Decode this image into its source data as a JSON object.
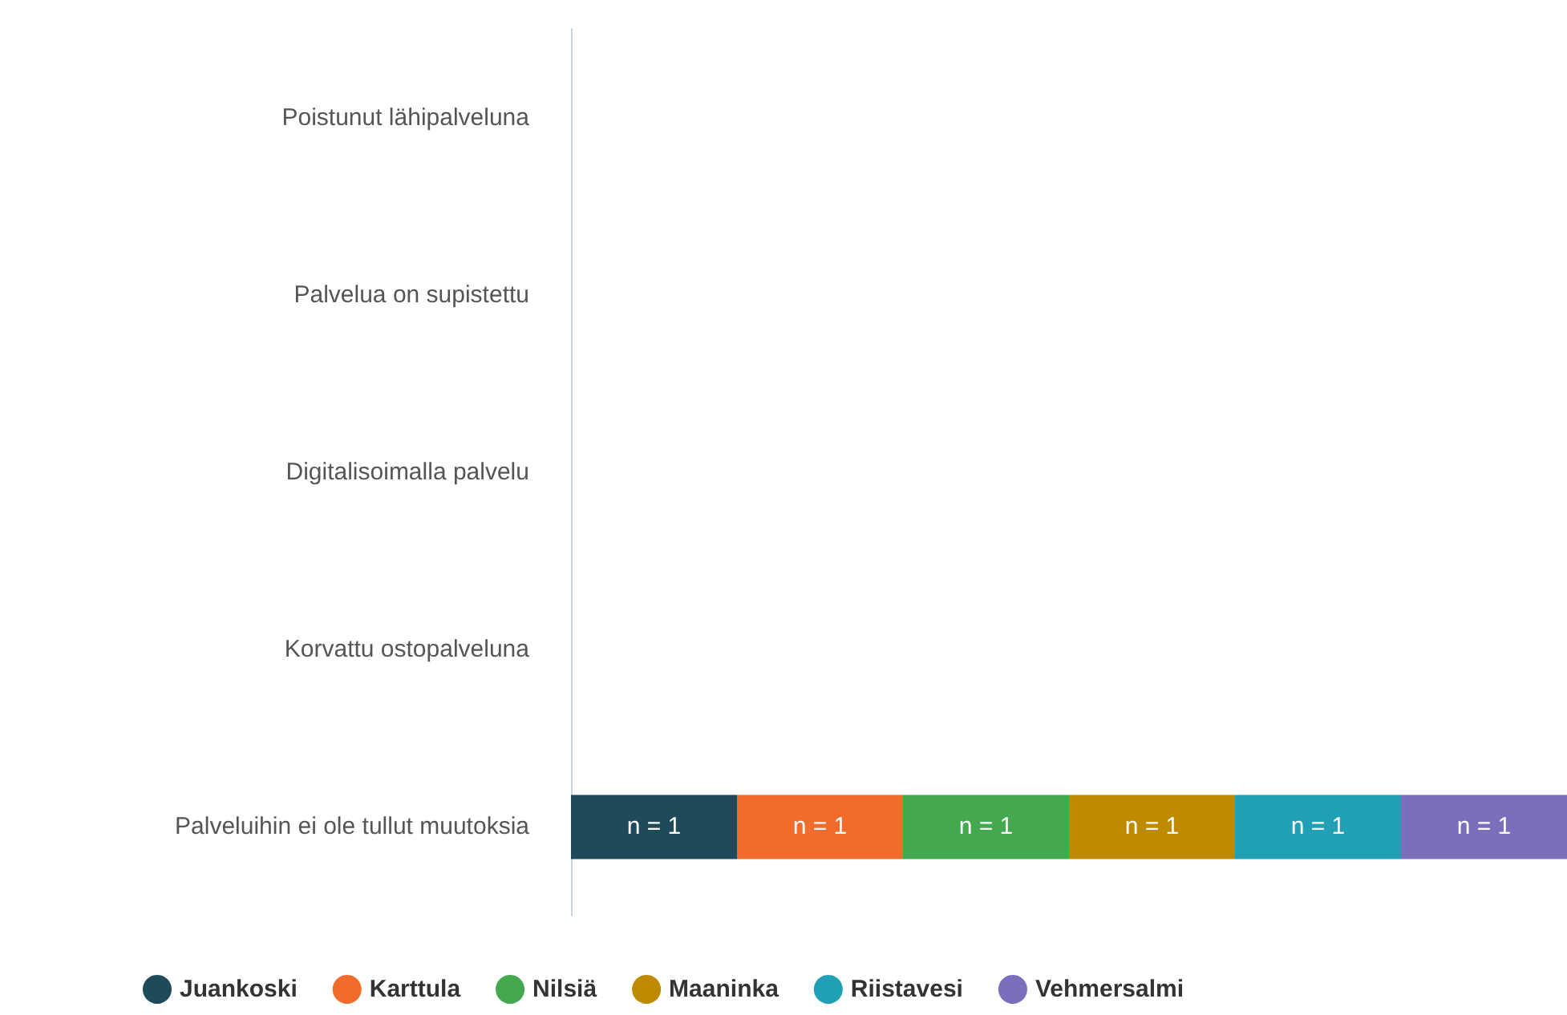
{
  "chart_data": {
    "type": "bar",
    "orientation": "horizontal",
    "stacked": true,
    "categories": [
      "Poistunut lähipalveluna",
      "Palvelua on supistettu",
      "Digitalisoimalla palvelu",
      "Korvattu ostopalveluna",
      "Palveluihin ei ole tullut muutoksia"
    ],
    "tick_labels": "y",
    "legend": "bottom",
    "series": [
      {
        "name": "Juankoski",
        "color": "#1f4a5a",
        "values": [
          null,
          null,
          null,
          null,
          1
        ],
        "value_labels": [
          null,
          null,
          null,
          null,
          "n = 1"
        ]
      },
      {
        "name": "Karttula",
        "color": "#f26b2a",
        "values": [
          null,
          null,
          null,
          null,
          1
        ],
        "value_labels": [
          null,
          null,
          null,
          null,
          "n = 1"
        ]
      },
      {
        "name": "Nilsiä",
        "color": "#44a84f",
        "values": [
          null,
          null,
          null,
          null,
          1
        ],
        "value_labels": [
          null,
          null,
          null,
          null,
          "n = 1"
        ]
      },
      {
        "name": "Maaninka",
        "color": "#bf8a00",
        "values": [
          null,
          null,
          null,
          null,
          1
        ],
        "value_labels": [
          null,
          null,
          null,
          null,
          "n = 1"
        ]
      },
      {
        "name": "Riistavesi",
        "color": "#21a0b5",
        "values": [
          null,
          null,
          null,
          null,
          1
        ],
        "value_labels": [
          null,
          null,
          null,
          null,
          "n = 1"
        ]
      },
      {
        "name": "Vehmersalmi",
        "color": "#7b6fbd",
        "values": [
          null,
          null,
          null,
          null,
          1
        ],
        "value_labels": [
          null,
          null,
          null,
          null,
          "n = 1"
        ]
      }
    ]
  }
}
